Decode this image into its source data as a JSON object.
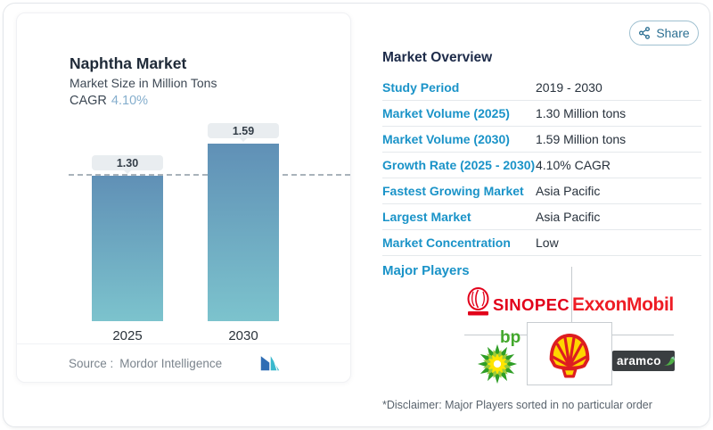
{
  "chart": {
    "title": "Naphtha Market",
    "subtitle": "Market Size in Million Tons",
    "cagr_label": "CAGR",
    "cagr_value": "4.10%",
    "source_label": "Source :",
    "source_value": "Mordor Intelligence"
  },
  "chart_data": {
    "type": "bar",
    "title": "Naphtha Market",
    "subtitle": "Market Size in Million Tons",
    "ylabel": "Market Size in Million Tons",
    "categories": [
      "2025",
      "2030"
    ],
    "values": [
      1.3,
      1.59
    ],
    "value_labels": [
      "1.30",
      "1.59"
    ],
    "ylim": [
      0,
      1.85
    ],
    "reference_line": 1.3,
    "grid": false,
    "legend": "none",
    "bar_gradient": [
      "#6090b6",
      "#7cc3cd"
    ]
  },
  "share": {
    "label": "Share"
  },
  "overview": {
    "title": "Market Overview",
    "rows": [
      {
        "label": "Study Period",
        "value": "2019 - 2030"
      },
      {
        "label": "Market Volume (2025)",
        "value": "1.30 Million tons"
      },
      {
        "label": "Market Volume (2030)",
        "value": "1.59 Million tons"
      },
      {
        "label": "Growth Rate (2025 - 2030)",
        "value": "4.10% CAGR"
      },
      {
        "label": "Fastest Growing Market",
        "value": "Asia Pacific"
      },
      {
        "label": "Largest Market",
        "value": "Asia Pacific"
      },
      {
        "label": "Market Concentration",
        "value": "Low"
      }
    ],
    "major_players_label": "Major Players",
    "players": [
      {
        "name": "Sinopec",
        "text": "SINOPEC"
      },
      {
        "name": "ExxonMobil",
        "text": "ExxonMobil"
      },
      {
        "name": "bp",
        "text": "bp"
      },
      {
        "name": "Shell",
        "text": ""
      },
      {
        "name": "Aramco",
        "text": "aramco"
      }
    ],
    "disclaimer": "*Disclaimer: Major Players sorted in no particular order"
  },
  "colors": {
    "label_blue": "#1a93c8",
    "heading_navy": "#1d2b49",
    "cagr_blue": "#85aecd",
    "bar_top": "#6090b6",
    "bar_bottom": "#7cc3cd",
    "share_teal": "#2d7093",
    "sinopec_red": "#e2001a",
    "exxon_red": "#ee1d25",
    "bp_green": "#43a82c",
    "shell_yellow": "#ffd500",
    "shell_red": "#dd1d21",
    "aramco_bg": "#3a3e41"
  }
}
